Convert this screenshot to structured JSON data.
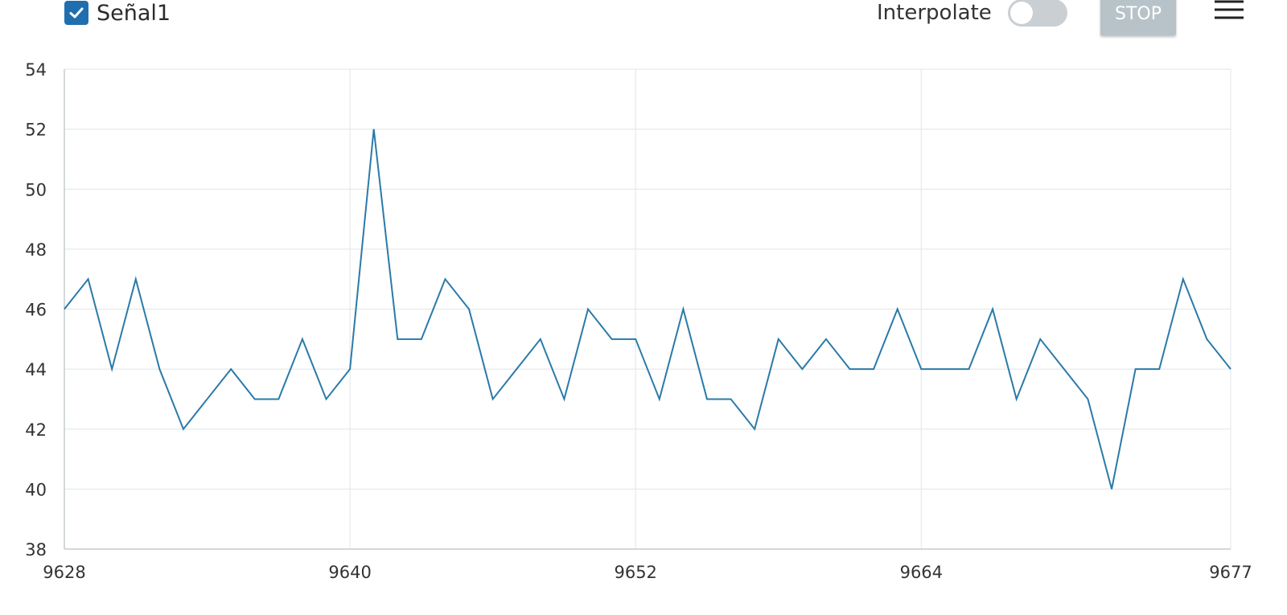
{
  "legend": {
    "series_label": "Señal1",
    "checked": true
  },
  "controls": {
    "interpolate_label": "Interpolate",
    "interpolate_on": false,
    "stop_label": "STOP"
  },
  "colors": {
    "series": "#2a7aa8",
    "checkbox": "#1f6fb0",
    "grid": "#e6e9eb",
    "axis_text": "#333333"
  },
  "icons": {
    "menu": "menu-lines-icon"
  },
  "chart_data": {
    "type": "line",
    "title": "",
    "xlabel": "",
    "ylabel": "",
    "xlim": [
      9628,
      9677
    ],
    "ylim": [
      38,
      54
    ],
    "x_ticks": [
      9628,
      9640,
      9652,
      9664,
      9677
    ],
    "y_ticks": [
      38,
      40,
      42,
      44,
      46,
      48,
      50,
      52,
      54
    ],
    "grid": true,
    "series": [
      {
        "name": "Señal1",
        "x": [
          9628,
          9629,
          9630,
          9631,
          9632,
          9633,
          9634,
          9635,
          9636,
          9637,
          9638,
          9639,
          9640,
          9641,
          9642,
          9643,
          9644,
          9645,
          9646,
          9647,
          9648,
          9649,
          9650,
          9651,
          9652,
          9653,
          9654,
          9655,
          9656,
          9657,
          9658,
          9659,
          9660,
          9661,
          9662,
          9663,
          9664,
          9665,
          9666,
          9667,
          9668,
          9669,
          9670,
          9671,
          9672,
          9673,
          9674,
          9675,
          9676,
          9677
        ],
        "values": [
          46,
          47,
          44,
          47,
          44,
          42,
          43,
          44,
          43,
          43,
          45,
          43,
          44,
          52,
          45,
          45,
          47,
          46,
          43,
          44,
          45,
          43,
          46,
          45,
          45,
          43,
          46,
          43,
          43,
          42,
          45,
          44,
          45,
          44,
          44,
          46,
          44,
          44,
          44,
          46,
          43,
          45,
          44,
          43,
          40,
          44,
          44,
          47,
          45,
          44
        ]
      }
    ]
  }
}
